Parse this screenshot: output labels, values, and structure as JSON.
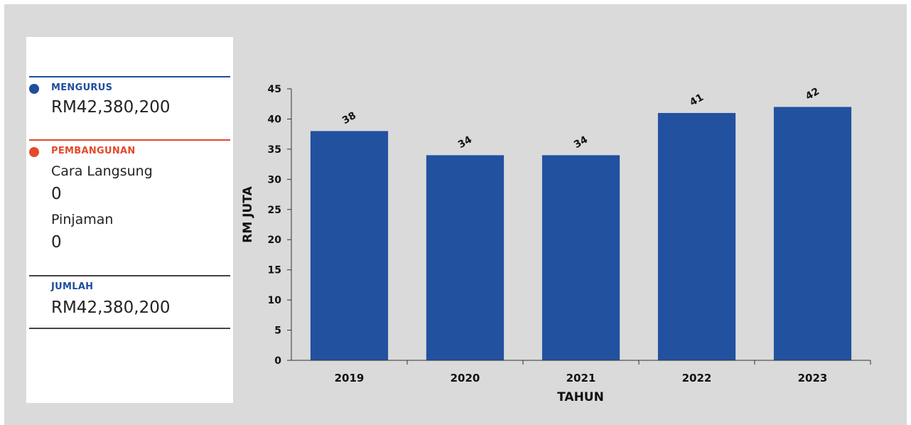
{
  "colors": {
    "mengurus": "#1f4e9c",
    "pembangunan": "#e5492b",
    "jumlah": "#1f4e9c",
    "bar": "#2251a0"
  },
  "summary": {
    "mengurus": {
      "label": "MENGURUS",
      "amount": "RM42,380,200"
    },
    "pembangunan": {
      "label": "PEMBANGUNAN",
      "items": [
        {
          "label": "Cara Langsung",
          "value": "0"
        },
        {
          "label": "Pinjaman",
          "value": "0"
        }
      ]
    },
    "jumlah": {
      "label": "JUMLAH",
      "amount": "RM42,380,200"
    }
  },
  "chart_data": {
    "type": "bar",
    "categories": [
      "2019",
      "2020",
      "2021",
      "2022",
      "2023"
    ],
    "values": [
      38,
      34,
      34,
      41,
      42
    ],
    "data_labels": [
      "38",
      "34",
      "34",
      "41",
      "42"
    ],
    "xlabel": "TAHUN",
    "ylabel": "RM JUTA",
    "ylim": [
      0,
      45
    ],
    "yticks": [
      0,
      5,
      10,
      15,
      20,
      25,
      30,
      35,
      40,
      45
    ],
    "grid": false,
    "legend": "none"
  }
}
